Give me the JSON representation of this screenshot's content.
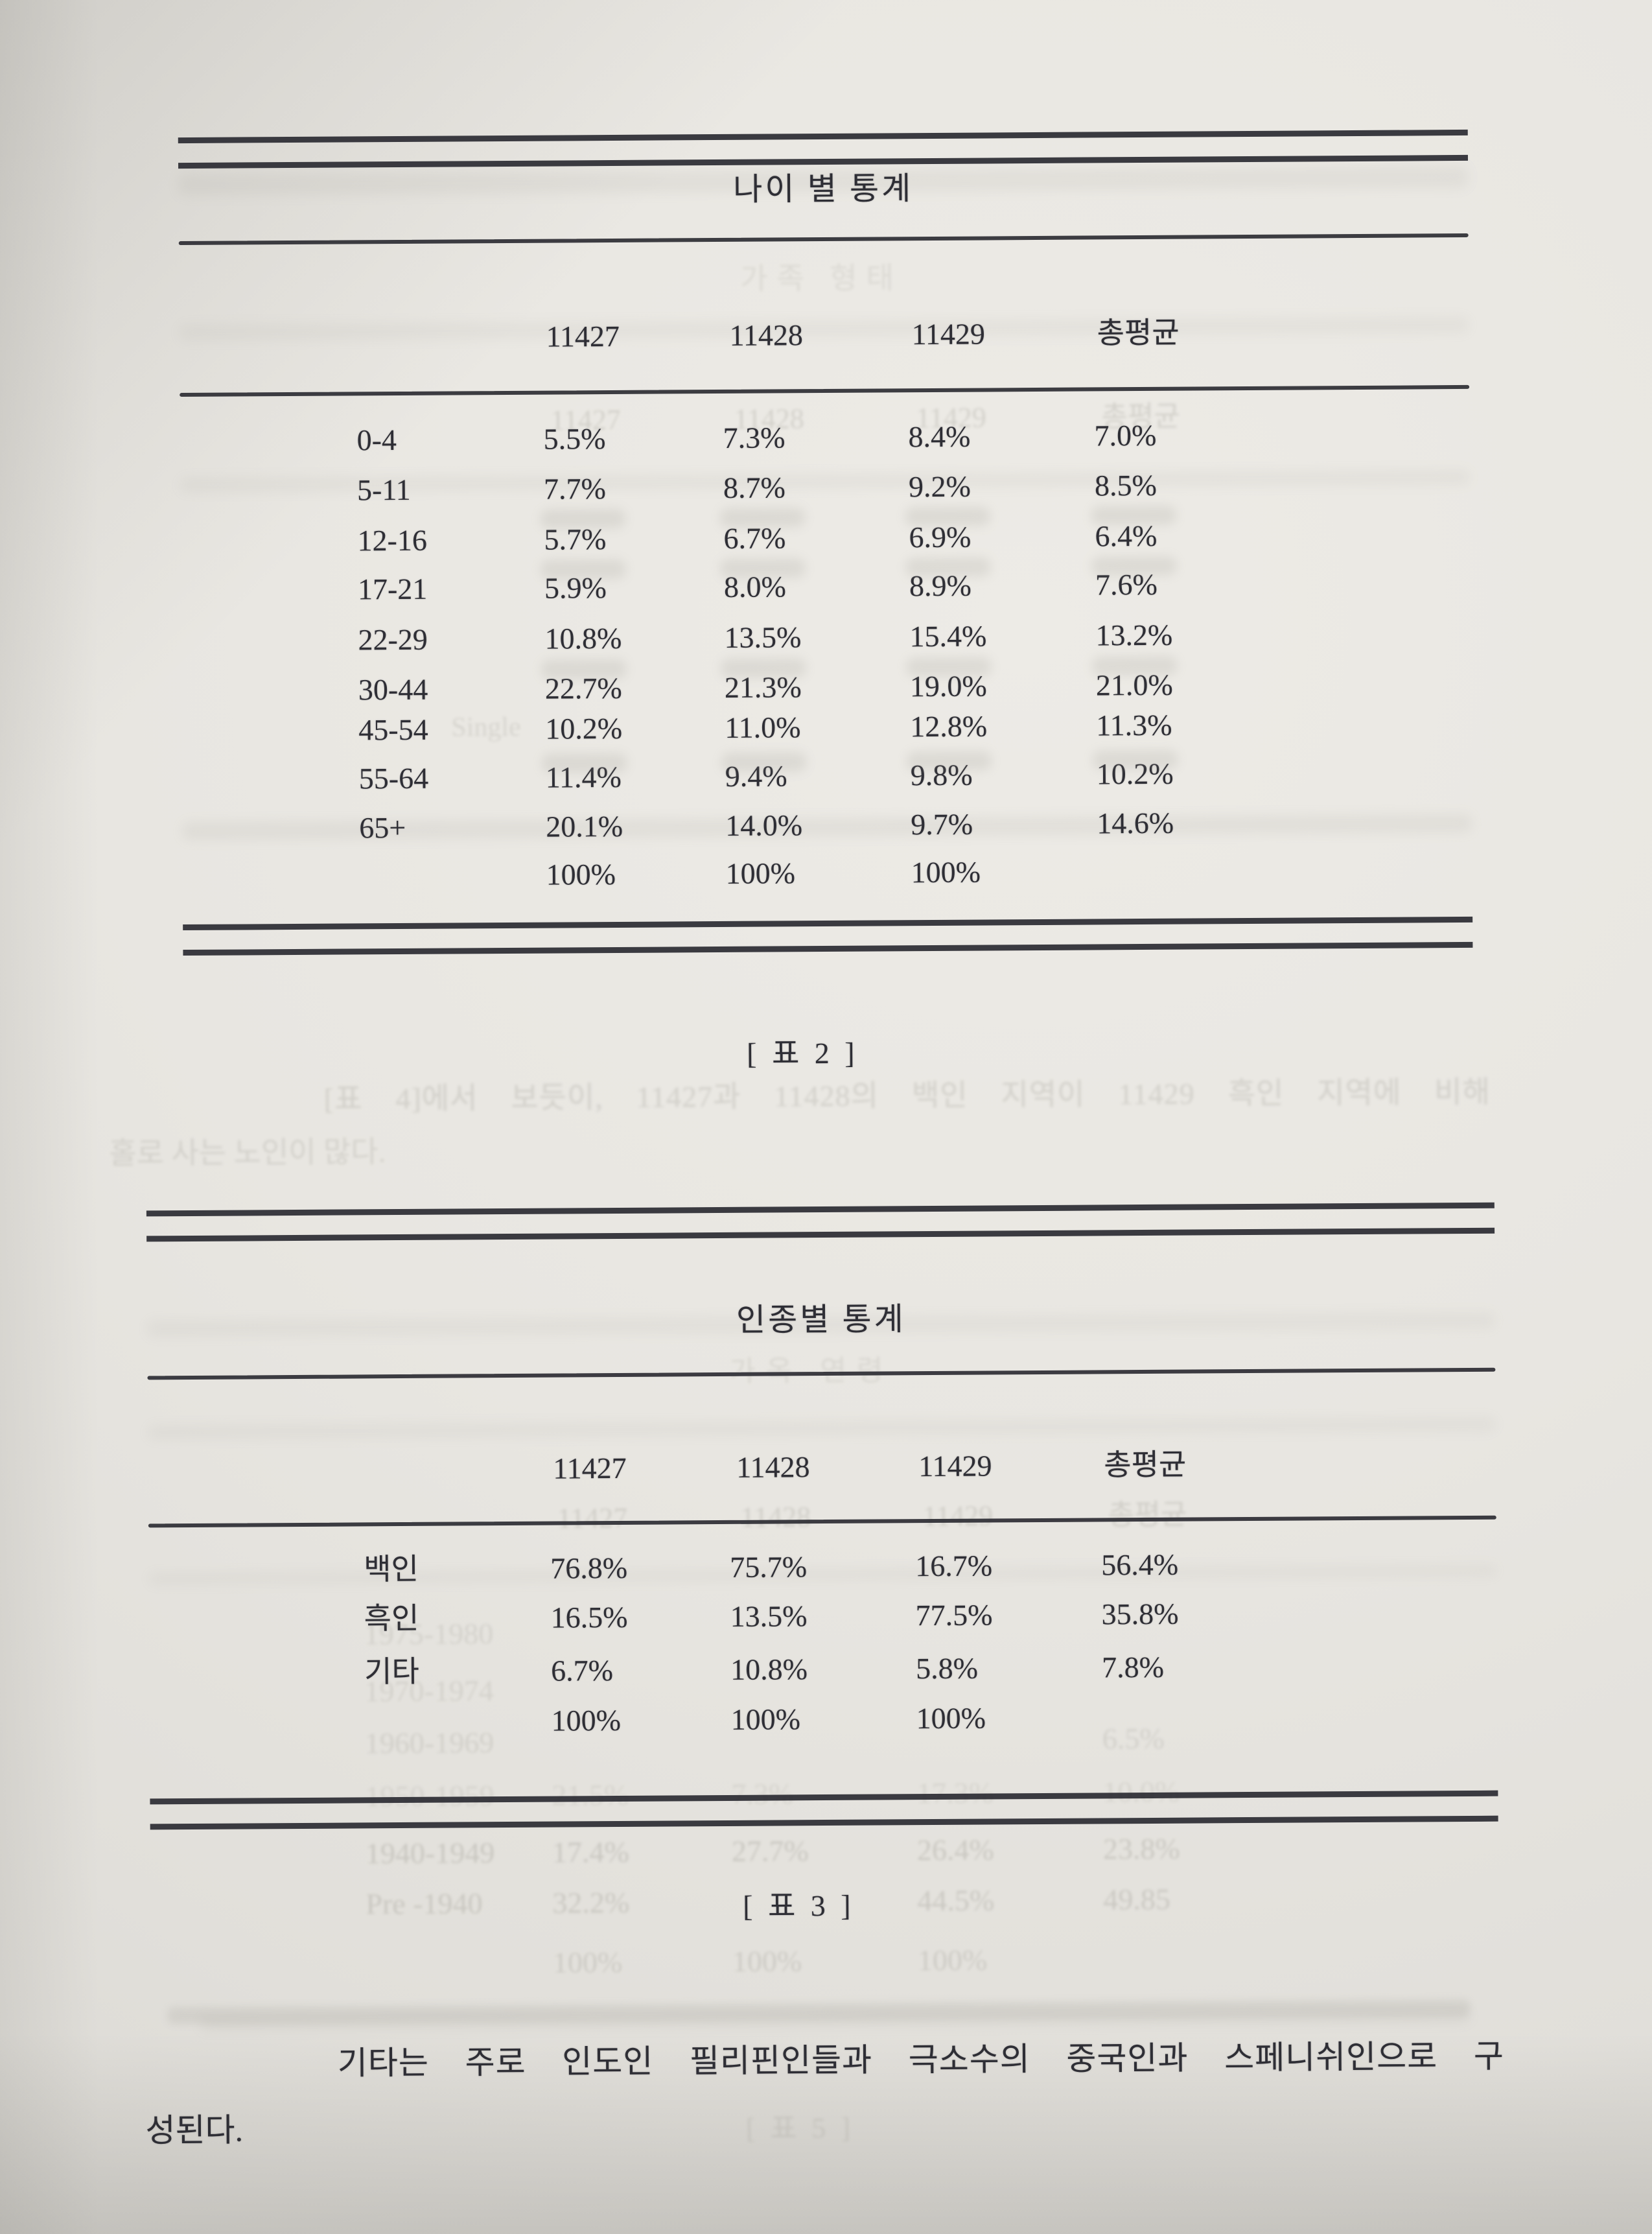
{
  "page": {
    "background": "#e8e6e1",
    "ink": "#2e2e35"
  },
  "age_table": {
    "title": "나이 별 통계",
    "columns": [
      "11427",
      "11428",
      "11429",
      "총평균"
    ],
    "rows": [
      {
        "label": "0-4",
        "values": [
          "5.5%",
          "7.3%",
          "8.4%",
          "7.0%"
        ]
      },
      {
        "label": "5-11",
        "values": [
          "7.7%",
          "8.7%",
          "9.2%",
          "8.5%"
        ]
      },
      {
        "label": "12-16",
        "values": [
          "5.7%",
          "6.7%",
          "6.9%",
          "6.4%"
        ]
      },
      {
        "label": "17-21",
        "values": [
          "5.9%",
          "8.0%",
          "8.9%",
          "7.6%"
        ]
      },
      {
        "label": "22-29",
        "values": [
          "10.8%",
          "13.5%",
          "15.4%",
          "13.2%"
        ]
      },
      {
        "label": "30-44",
        "values": [
          "22.7%",
          "21.3%",
          "19.0%",
          "21.0%"
        ]
      },
      {
        "label": "45-54",
        "values": [
          "10.2%",
          "11.0%",
          "12.8%",
          "11.3%"
        ]
      },
      {
        "label": "55-64",
        "values": [
          "11.4%",
          "9.4%",
          "9.8%",
          "10.2%"
        ]
      },
      {
        "label": "65+",
        "values": [
          "20.1%",
          "14.0%",
          "9.7%",
          "14.6%"
        ]
      },
      {
        "label": "",
        "values": [
          "100%",
          "100%",
          "100%",
          ""
        ]
      }
    ],
    "caption": "[ 표 2 ]"
  },
  "race_table": {
    "title": "인종별 통계",
    "columns": [
      "11427",
      "11428",
      "11429",
      "총평균"
    ],
    "rows": [
      {
        "label": "백인",
        "values": [
          "76.8%",
          "75.7%",
          "16.7%",
          "56.4%"
        ]
      },
      {
        "label": "흑인",
        "values": [
          "16.5%",
          "13.5%",
          "77.5%",
          "35.8%"
        ]
      },
      {
        "label": "기타",
        "values": [
          "6.7%",
          "10.8%",
          "5.8%",
          "7.8%"
        ]
      },
      {
        "label": "",
        "values": [
          "100%",
          "100%",
          "100%",
          ""
        ]
      }
    ],
    "caption": "[ 표 3 ]"
  },
  "body_text": {
    "line1": "기타는 주로 인도인 필리핀인들과 극소수의 중국인과 스페니쉬인으로 구",
    "line2": "성된다."
  },
  "bleedthrough": {
    "age_table_subtitle": "가족 형태",
    "ghost_header": [
      "11427",
      "11428",
      "11429",
      "총평균"
    ],
    "single_note": "Single",
    "note_line1": "[표 4]에서 보듯이, 11427과 11428의 백인 지역이 11429 흑인 지역에 비해",
    "note_line2": "홀로 사는 노인이 많다.",
    "race_table_subtitle": "가옥 연령",
    "year_rows": [
      {
        "label": "1975-1980",
        "values": [
          "",
          "",
          "",
          ""
        ]
      },
      {
        "label": "1970-1974",
        "values": [
          "",
          "",
          "",
          ""
        ]
      },
      {
        "label": "1960-1969",
        "values": [
          "",
          "",
          "",
          "6.5%"
        ]
      },
      {
        "label": "1950-1959",
        "values": [
          "21.5%",
          "7.3%",
          "17.3%",
          "10.0%"
        ]
      },
      {
        "label": "1940-1949",
        "values": [
          "17.4%",
          "27.7%",
          "26.4%",
          "23.8%"
        ]
      },
      {
        "label": "Pre -1940",
        "values": [
          "32.2%",
          "",
          "44.5%",
          "49.85"
        ]
      },
      {
        "label": "",
        "values": [
          "100%",
          "100%",
          "100%",
          ""
        ]
      }
    ],
    "bottom_caption": "[ 표 5 ]"
  }
}
